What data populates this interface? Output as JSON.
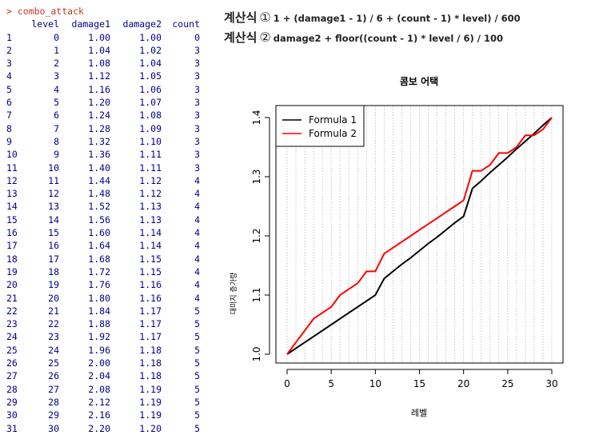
{
  "console": {
    "prompt": "> combo_attack",
    "headers": [
      "",
      "level",
      "damage1",
      "damage2",
      "count"
    ],
    "rows": [
      [
        "1",
        "0",
        "1.00",
        "1.00",
        "0"
      ],
      [
        "2",
        "1",
        "1.04",
        "1.02",
        "3"
      ],
      [
        "3",
        "2",
        "1.08",
        "1.04",
        "3"
      ],
      [
        "4",
        "3",
        "1.12",
        "1.05",
        "3"
      ],
      [
        "5",
        "4",
        "1.16",
        "1.06",
        "3"
      ],
      [
        "6",
        "5",
        "1.20",
        "1.07",
        "3"
      ],
      [
        "7",
        "6",
        "1.24",
        "1.08",
        "3"
      ],
      [
        "8",
        "7",
        "1.28",
        "1.09",
        "3"
      ],
      [
        "9",
        "8",
        "1.32",
        "1.10",
        "3"
      ],
      [
        "10",
        "9",
        "1.36",
        "1.11",
        "3"
      ],
      [
        "11",
        "10",
        "1.40",
        "1.11",
        "3"
      ],
      [
        "12",
        "11",
        "1.44",
        "1.12",
        "4"
      ],
      [
        "13",
        "12",
        "1.48",
        "1.12",
        "4"
      ],
      [
        "14",
        "13",
        "1.52",
        "1.13",
        "4"
      ],
      [
        "15",
        "14",
        "1.56",
        "1.13",
        "4"
      ],
      [
        "16",
        "15",
        "1.60",
        "1.14",
        "4"
      ],
      [
        "17",
        "16",
        "1.64",
        "1.14",
        "4"
      ],
      [
        "18",
        "17",
        "1.68",
        "1.15",
        "4"
      ],
      [
        "19",
        "18",
        "1.72",
        "1.15",
        "4"
      ],
      [
        "20",
        "19",
        "1.76",
        "1.16",
        "4"
      ],
      [
        "21",
        "20",
        "1.80",
        "1.16",
        "4"
      ],
      [
        "22",
        "21",
        "1.84",
        "1.17",
        "5"
      ],
      [
        "23",
        "22",
        "1.88",
        "1.17",
        "5"
      ],
      [
        "24",
        "23",
        "1.92",
        "1.17",
        "5"
      ],
      [
        "25",
        "24",
        "1.96",
        "1.18",
        "5"
      ],
      [
        "26",
        "25",
        "2.00",
        "1.18",
        "5"
      ],
      [
        "27",
        "26",
        "2.04",
        "1.18",
        "5"
      ],
      [
        "28",
        "27",
        "2.08",
        "1.19",
        "5"
      ],
      [
        "29",
        "28",
        "2.12",
        "1.19",
        "5"
      ],
      [
        "30",
        "29",
        "2.16",
        "1.19",
        "5"
      ],
      [
        "31",
        "30",
        "2.20",
        "1.20",
        "5"
      ]
    ]
  },
  "formulas": [
    {
      "label": "계산식",
      "num": "①",
      "expr": "1 + (damage1 - 1)  / 6 + (count - 1) * level) / 600"
    },
    {
      "label": "계산식",
      "num": "②",
      "expr": "damage2 + floor((count - 1) * level / 6) / 100"
    }
  ],
  "chart_data": {
    "type": "line",
    "title": "콤보 어택",
    "xlabel": "레벨",
    "ylabel": "대미지 증가량",
    "xlim": [
      0,
      30
    ],
    "ylim": [
      1.0,
      1.4
    ],
    "xticks": [
      "0",
      "5",
      "10",
      "15",
      "20",
      "25",
      "30"
    ],
    "yticks": [
      "1.0",
      "1.1",
      "1.2",
      "1.3",
      "1.4"
    ],
    "grid": "vertical dotted",
    "legend_position": "top-left",
    "x": [
      0,
      1,
      2,
      3,
      4,
      5,
      6,
      7,
      8,
      9,
      10,
      11,
      12,
      13,
      14,
      15,
      16,
      17,
      18,
      19,
      20,
      21,
      22,
      23,
      24,
      25,
      26,
      27,
      28,
      29,
      30
    ],
    "series": [
      {
        "name": "Formula 1",
        "color": "#000000",
        "values": [
          1.0,
          1.01,
          1.02,
          1.03,
          1.04,
          1.05,
          1.06,
          1.07,
          1.08,
          1.09,
          1.1,
          1.128,
          1.14,
          1.152,
          1.163,
          1.175,
          1.187,
          1.198,
          1.21,
          1.222,
          1.233,
          1.28,
          1.293,
          1.307,
          1.32,
          1.333,
          1.347,
          1.36,
          1.373,
          1.387,
          1.4
        ]
      },
      {
        "name": "Formula 2",
        "color": "#ff0000",
        "values": [
          1.0,
          1.02,
          1.04,
          1.06,
          1.07,
          1.08,
          1.1,
          1.11,
          1.12,
          1.14,
          1.14,
          1.17,
          1.18,
          1.19,
          1.2,
          1.21,
          1.22,
          1.23,
          1.24,
          1.25,
          1.26,
          1.31,
          1.31,
          1.32,
          1.34,
          1.34,
          1.35,
          1.37,
          1.37,
          1.38,
          1.4
        ]
      }
    ]
  }
}
